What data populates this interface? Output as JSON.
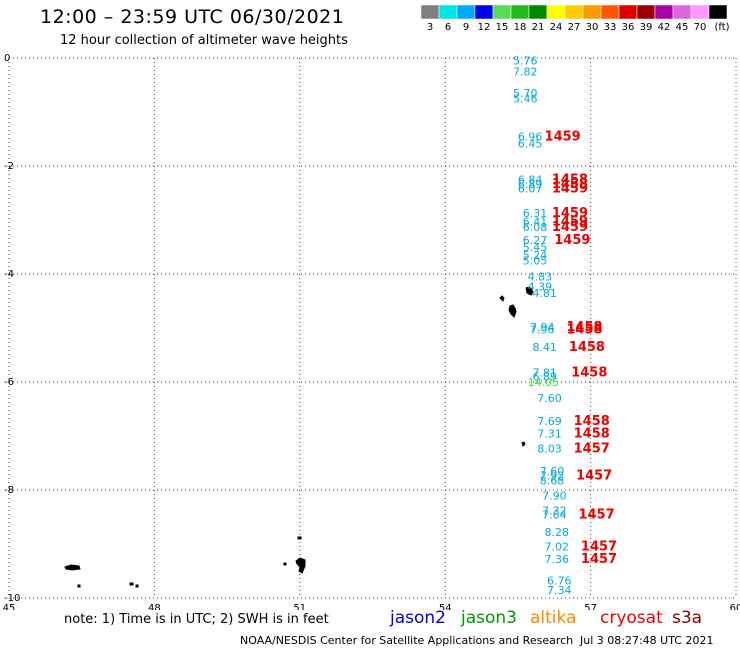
{
  "header": {
    "title": "12:00 – 23:59 UTC 06/30/2021",
    "subtitle": "12 hour collection of altimeter wave heights"
  },
  "colorbar": {
    "colors": [
      "#808080",
      "#00e5e5",
      "#00aaff",
      "#0000ee",
      "#55dd55",
      "#22bb22",
      "#008800",
      "#ffff00",
      "#ffcc00",
      "#ff9900",
      "#ff5500",
      "#dd0000",
      "#990000",
      "#aa00aa",
      "#dd66dd",
      "#ff99ff",
      "#000000"
    ],
    "labels": [
      "3",
      "6",
      "9",
      "12",
      "15",
      "18",
      "21",
      "24",
      "27",
      "30",
      "33",
      "36",
      "39",
      "42",
      "45",
      "70",
      "(ft)"
    ]
  },
  "map": {
    "lon_range": [
      45,
      60
    ],
    "lat_range": [
      -10,
      0
    ],
    "x_ticks": [
      "45",
      "48",
      "51",
      "54",
      "57",
      "60"
    ],
    "y_ticks": [
      "0",
      "-2",
      "-4",
      "-6",
      "-8",
      "-10"
    ],
    "grid": "dotted"
  },
  "observations": [
    {
      "lon": 55.4,
      "lat": -0.05,
      "text": "5.76",
      "sat": "jason2"
    },
    {
      "lon": 55.4,
      "lat": -0.25,
      "text": "7.82",
      "sat": "jason2"
    },
    {
      "lon": 55.4,
      "lat": -0.65,
      "text": "5.70",
      "sat": "jason2"
    },
    {
      "lon": 55.4,
      "lat": -0.75,
      "text": "5.46",
      "sat": "jason2"
    },
    {
      "lon": 55.5,
      "lat": -1.45,
      "text": "6.96",
      "sat": "jason2"
    },
    {
      "lon": 55.5,
      "lat": -1.58,
      "text": "6.45",
      "sat": "jason2"
    },
    {
      "lon": 55.5,
      "lat": -2.25,
      "text": "6.84",
      "sat": "jason2"
    },
    {
      "lon": 55.5,
      "lat": -2.33,
      "text": "6.89",
      "sat": "jason2"
    },
    {
      "lon": 55.5,
      "lat": -2.42,
      "text": "6.07",
      "sat": "jason2"
    },
    {
      "lon": 55.6,
      "lat": -2.87,
      "text": "6.31",
      "sat": "jason2"
    },
    {
      "lon": 55.6,
      "lat": -3.03,
      "text": "6.41",
      "sat": "jason2"
    },
    {
      "lon": 55.6,
      "lat": -3.13,
      "text": "6.08",
      "sat": "jason2"
    },
    {
      "lon": 55.6,
      "lat": -3.37,
      "text": "6.27",
      "sat": "jason2"
    },
    {
      "lon": 55.6,
      "lat": -3.5,
      "text": "5.45",
      "sat": "jason2"
    },
    {
      "lon": 55.6,
      "lat": -3.65,
      "text": "5.24",
      "sat": "jason2"
    },
    {
      "lon": 55.6,
      "lat": -3.75,
      "text": "5.05",
      "sat": "jason2"
    },
    {
      "lon": 55.7,
      "lat": -4.05,
      "text": "4.83",
      "sat": "jason2"
    },
    {
      "lon": 55.7,
      "lat": -4.23,
      "text": "4.39",
      "sat": "jason2"
    },
    {
      "lon": 55.8,
      "lat": -4.35,
      "text": "4.81",
      "sat": "jason2"
    },
    {
      "lon": 55.75,
      "lat": -4.98,
      "text": "7.94",
      "sat": "jason2"
    },
    {
      "lon": 55.75,
      "lat": -5.03,
      "text": "7.96",
      "sat": "jason2"
    },
    {
      "lon": 55.8,
      "lat": -5.35,
      "text": "8.41",
      "sat": "jason2"
    },
    {
      "lon": 55.8,
      "lat": -5.82,
      "text": "7.81",
      "sat": "jason2"
    },
    {
      "lon": 55.8,
      "lat": -5.9,
      "text": "6.89",
      "sat": "jason2"
    },
    {
      "lon": 55.7,
      "lat": -6.0,
      "text": "14.05",
      "sat": "jason3"
    },
    {
      "lon": 55.9,
      "lat": -6.3,
      "text": "7.60",
      "sat": "jason2"
    },
    {
      "lon": 55.9,
      "lat": -6.72,
      "text": "7.69",
      "sat": "jason2"
    },
    {
      "lon": 55.9,
      "lat": -6.95,
      "text": "7.31",
      "sat": "jason2"
    },
    {
      "lon": 55.9,
      "lat": -7.23,
      "text": "8.03",
      "sat": "jason2"
    },
    {
      "lon": 55.95,
      "lat": -7.65,
      "text": "7.60",
      "sat": "jason2"
    },
    {
      "lon": 55.95,
      "lat": -7.73,
      "text": "7.92",
      "sat": "jason2"
    },
    {
      "lon": 55.95,
      "lat": -7.82,
      "text": "8.68",
      "sat": "jason2"
    },
    {
      "lon": 56.0,
      "lat": -8.1,
      "text": "7.90",
      "sat": "jason2"
    },
    {
      "lon": 56.0,
      "lat": -8.38,
      "text": "7.32",
      "sat": "jason2"
    },
    {
      "lon": 56.0,
      "lat": -8.45,
      "text": "7.64",
      "sat": "jason2"
    },
    {
      "lon": 56.05,
      "lat": -8.78,
      "text": "8.28",
      "sat": "jason2"
    },
    {
      "lon": 56.05,
      "lat": -9.05,
      "text": "7.02",
      "sat": "jason2"
    },
    {
      "lon": 56.05,
      "lat": -9.28,
      "text": "7.36",
      "sat": "jason2"
    },
    {
      "lon": 56.1,
      "lat": -9.68,
      "text": "6.76",
      "sat": "jason2"
    },
    {
      "lon": 56.1,
      "lat": -9.85,
      "text": "7.34",
      "sat": "jason2"
    },
    {
      "lon": 56.05,
      "lat": -1.45,
      "text": "1459",
      "sat": "cryosat"
    },
    {
      "lon": 56.2,
      "lat": -2.25,
      "text": "1458",
      "sat": "cryosat"
    },
    {
      "lon": 56.2,
      "lat": -2.33,
      "text": "1458",
      "sat": "cryosat"
    },
    {
      "lon": 56.2,
      "lat": -2.42,
      "text": "1459",
      "sat": "cryosat"
    },
    {
      "lon": 56.2,
      "lat": -2.87,
      "text": "1459",
      "sat": "cryosat"
    },
    {
      "lon": 56.2,
      "lat": -3.03,
      "text": "1459",
      "sat": "cryosat"
    },
    {
      "lon": 56.2,
      "lat": -3.13,
      "text": "1459",
      "sat": "cryosat"
    },
    {
      "lon": 56.25,
      "lat": -3.37,
      "text": "1459",
      "sat": "cryosat"
    },
    {
      "lon": 56.5,
      "lat": -4.98,
      "text": "1458",
      "sat": "cryosat"
    },
    {
      "lon": 56.5,
      "lat": -5.03,
      "text": "1458",
      "sat": "cryosat"
    },
    {
      "lon": 56.55,
      "lat": -5.35,
      "text": "1458",
      "sat": "cryosat"
    },
    {
      "lon": 56.6,
      "lat": -5.82,
      "text": "1458",
      "sat": "cryosat"
    },
    {
      "lon": 56.65,
      "lat": -6.72,
      "text": "1458",
      "sat": "cryosat"
    },
    {
      "lon": 56.65,
      "lat": -6.95,
      "text": "1458",
      "sat": "cryosat"
    },
    {
      "lon": 56.65,
      "lat": -7.23,
      "text": "1457",
      "sat": "cryosat"
    },
    {
      "lon": 56.7,
      "lat": -7.73,
      "text": "1457",
      "sat": "cryosat"
    },
    {
      "lon": 56.75,
      "lat": -8.45,
      "text": "1457",
      "sat": "cryosat"
    },
    {
      "lon": 56.8,
      "lat": -9.05,
      "text": "1457",
      "sat": "cryosat"
    },
    {
      "lon": 56.8,
      "lat": -9.28,
      "text": "1457",
      "sat": "cryosat"
    }
  ],
  "sat_colors": {
    "jason2": "#00aadd",
    "jason3": "#33dd33",
    "cryosat": "#ee0000"
  },
  "footer": {
    "note": "note: 1) Time is in UTC; 2) SWH is in feet",
    "satellites": [
      {
        "name": "jason2",
        "color": "#0000ee"
      },
      {
        "name": "jason3",
        "color": "#009900"
      },
      {
        "name": "altika",
        "color": "#ff8800"
      },
      {
        "name": "cryosat",
        "color": "#ee0000"
      },
      {
        "name": "s3a",
        "color": "#880000"
      }
    ],
    "credit": "NOAA/NESDIS Center for Satellite Applications and Research",
    "timestamp": "Jul  3 08:27:48 UTC 2021"
  }
}
